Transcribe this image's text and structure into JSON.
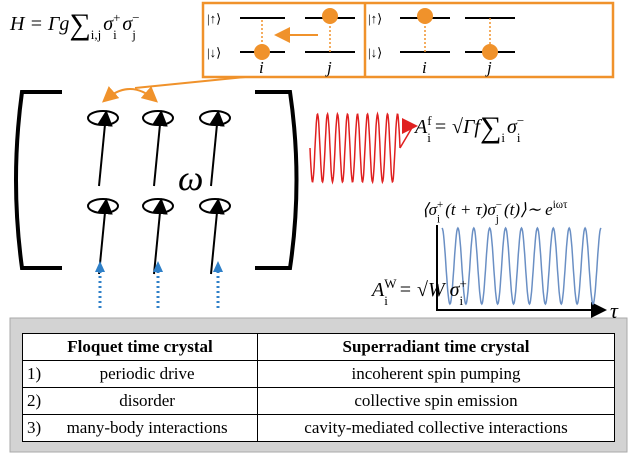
{
  "formulas": {
    "hamiltonian": [
      {
        "t": "H = Γg "
      },
      {
        "t": "∑"
      },
      {
        "sub": "i,j"
      },
      {
        "t": " σ"
      },
      {
        "sup": "+"
      },
      {
        "sub": "i"
      },
      {
        "t": " σ"
      },
      {
        "sup": "−"
      },
      {
        "sub": "j"
      }
    ],
    "emission": [
      {
        "t": "A"
      },
      {
        "sup": "f"
      },
      {
        "sub": "i"
      },
      {
        "t": " = √Γf "
      },
      {
        "t": "∑"
      },
      {
        "sub": "i"
      },
      {
        "t": " σ"
      },
      {
        "sup": "−"
      },
      {
        "sub": "i"
      }
    ],
    "pump": [
      {
        "t": "A"
      },
      {
        "sup": "W"
      },
      {
        "sub": "i"
      },
      {
        "t": " = √W σ"
      },
      {
        "sup": "+"
      },
      {
        "sub": "i"
      }
    ],
    "correlation": [
      {
        "t": "⟨σ"
      },
      {
        "sup": "+"
      },
      {
        "sub": "i"
      },
      {
        "t": "(t + τ)σ"
      },
      {
        "sup": "−"
      },
      {
        "sub": "j"
      },
      {
        "t": "(t)⟩∼ e"
      },
      {
        "sup": "iωτ"
      }
    ]
  },
  "labels": {
    "omega": "ω",
    "tau": "τ",
    "up": "|↑⟩",
    "down": "|↓⟩",
    "i": "i",
    "j": "j"
  },
  "table": {
    "header": [
      "Floquet time crystal",
      "Superradiant time crystal"
    ],
    "rows": [
      [
        "1)",
        "periodic drive",
        "incoherent spin pumping"
      ],
      [
        "2)",
        "disorder",
        "collective spin emission"
      ],
      [
        "3)",
        "many-body interactions",
        "cavity-mediated collective interactions"
      ]
    ]
  }
}
